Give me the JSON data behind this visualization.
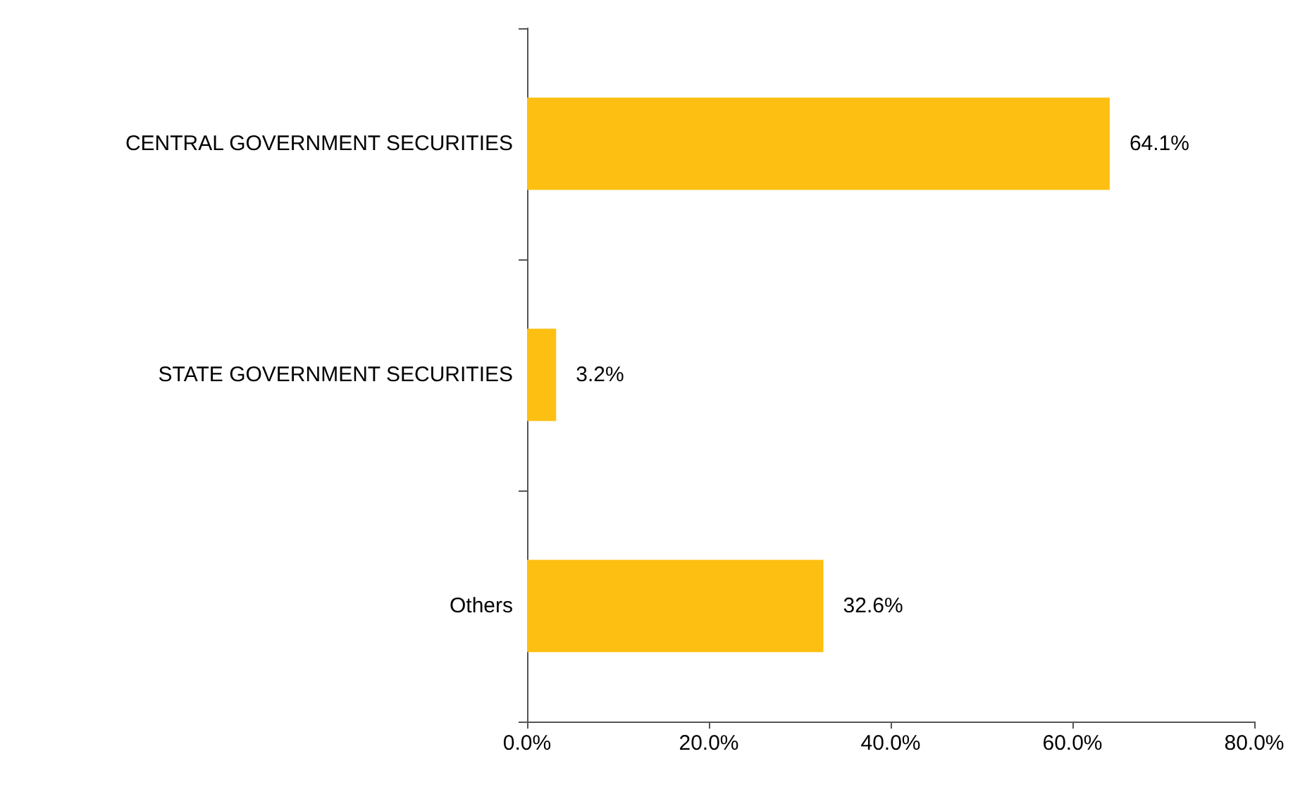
{
  "chart_data": {
    "type": "bar",
    "orientation": "horizontal",
    "categories": [
      "CENTRAL GOVERNMENT SECURITIES",
      "STATE GOVERNMENT SECURITIES",
      "Others"
    ],
    "values": [
      64.1,
      3.2,
      32.6
    ],
    "color": "#fdbf11",
    "value_labels": [
      "64.1%",
      "3.2%",
      "32.6%"
    ],
    "xlim": [
      0,
      80
    ],
    "xticks": [
      {
        "value": 0,
        "label": "0.0%"
      },
      {
        "value": 20,
        "label": "20.0%"
      },
      {
        "value": 40,
        "label": "40.0%"
      },
      {
        "value": 60,
        "label": "60.0%"
      },
      {
        "value": 80,
        "label": "80.0%"
      }
    ],
    "grid": false
  }
}
